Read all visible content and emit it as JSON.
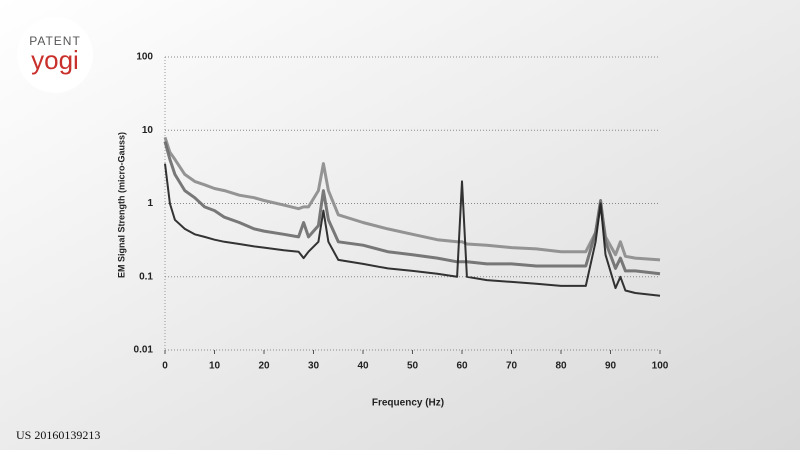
{
  "logo": {
    "top": "PATENT",
    "bottom": "yogi"
  },
  "patent_number": "US 20160139213",
  "chart_data": {
    "type": "line",
    "xlabel": "Frequency (Hz)",
    "ylabel": "EM Signal Strength (micro-Gauss)",
    "xlim": [
      0,
      100
    ],
    "ylim": [
      0.01,
      100
    ],
    "ylog": true,
    "grid": true,
    "xticks": [
      0,
      10,
      20,
      30,
      40,
      50,
      60,
      70,
      80,
      90,
      100
    ],
    "yticks": [
      100,
      10,
      1,
      0.1,
      0.01
    ],
    "x": [
      0,
      1,
      2,
      4,
      6,
      8,
      10,
      12,
      15,
      18,
      20,
      24,
      27,
      28,
      29,
      31,
      32,
      33,
      35,
      40,
      45,
      50,
      55,
      59,
      60,
      61,
      65,
      70,
      75,
      80,
      85,
      87,
      88,
      89,
      91,
      92,
      93,
      95,
      100
    ],
    "series": [
      {
        "color": "#8a8a8a",
        "values": [
          8,
          5,
          4,
          2.5,
          2,
          1.8,
          1.6,
          1.5,
          1.3,
          1.2,
          1.1,
          0.95,
          0.85,
          0.9,
          0.9,
          1.5,
          3.5,
          1.5,
          0.7,
          0.55,
          0.45,
          0.38,
          0.32,
          0.3,
          0.3,
          0.28,
          0.27,
          0.25,
          0.24,
          0.22,
          0.22,
          0.4,
          1.0,
          0.35,
          0.2,
          0.3,
          0.19,
          0.18,
          0.17
        ]
      },
      {
        "color": "#6a6a6a",
        "values": [
          7,
          4,
          2.5,
          1.5,
          1.2,
          0.9,
          0.8,
          0.65,
          0.55,
          0.45,
          0.42,
          0.38,
          0.35,
          0.55,
          0.35,
          0.5,
          1.5,
          0.6,
          0.3,
          0.27,
          0.22,
          0.2,
          0.18,
          0.16,
          0.16,
          0.16,
          0.15,
          0.15,
          0.14,
          0.14,
          0.14,
          0.4,
          1.1,
          0.3,
          0.13,
          0.18,
          0.12,
          0.12,
          0.11
        ]
      },
      {
        "color": "#1e1e1e",
        "values": [
          3.5,
          1.0,
          0.6,
          0.45,
          0.38,
          0.35,
          0.32,
          0.3,
          0.28,
          0.26,
          0.25,
          0.23,
          0.22,
          0.18,
          0.22,
          0.3,
          0.8,
          0.3,
          0.17,
          0.15,
          0.13,
          0.12,
          0.11,
          0.1,
          2,
          0.1,
          0.09,
          0.085,
          0.08,
          0.075,
          0.075,
          0.3,
          1.0,
          0.2,
          0.07,
          0.1,
          0.065,
          0.06,
          0.055
        ]
      }
    ]
  }
}
